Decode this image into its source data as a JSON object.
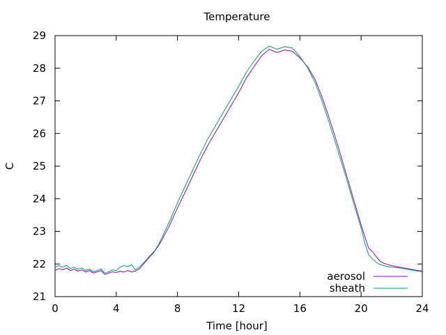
{
  "chart_data": {
    "type": "line",
    "title": "Temperature",
    "xlabel": "Time [hour]",
    "ylabel": "C",
    "xlim": [
      0,
      24
    ],
    "ylim": [
      21,
      29
    ],
    "xticks": [
      0,
      4,
      8,
      12,
      16,
      20,
      24
    ],
    "yticks": [
      21,
      22,
      23,
      24,
      25,
      26,
      27,
      28,
      29
    ],
    "grid": false,
    "legend_position": "bottom-right",
    "series": [
      {
        "name": "aerosol",
        "color": "#9400d3",
        "x": [
          0,
          0.25,
          0.5,
          0.75,
          1,
          1.25,
          1.5,
          1.75,
          2,
          2.25,
          2.5,
          2.75,
          3,
          3.25,
          3.5,
          3.75,
          4,
          4.25,
          4.5,
          4.75,
          5,
          5.25,
          5.5,
          5.75,
          6,
          6.25,
          6.5,
          6.75,
          7,
          7.5,
          8,
          8.5,
          9,
          9.5,
          10,
          10.5,
          11,
          11.5,
          12,
          12.5,
          13,
          13.5,
          14,
          14.5,
          15,
          15.5,
          16,
          16.5,
          17,
          17.5,
          18,
          18.5,
          19,
          19.5,
          20,
          20.25,
          20.5,
          20.75,
          21,
          21.25,
          21.5,
          21.75,
          22,
          22.5,
          23,
          23.5,
          24
        ],
        "y": [
          21.8,
          21.86,
          21.82,
          21.88,
          21.8,
          21.84,
          21.78,
          21.82,
          21.76,
          21.8,
          21.72,
          21.76,
          21.8,
          21.68,
          21.72,
          21.76,
          21.74,
          21.78,
          21.75,
          21.8,
          21.76,
          21.78,
          21.85,
          21.98,
          22.12,
          22.25,
          22.38,
          22.55,
          22.75,
          23.2,
          23.72,
          24.2,
          24.7,
          25.2,
          25.65,
          26.05,
          26.45,
          26.85,
          27.25,
          27.7,
          28.05,
          28.38,
          28.58,
          28.48,
          28.56,
          28.52,
          28.32,
          28.05,
          27.65,
          27.05,
          26.35,
          25.6,
          24.8,
          24.0,
          23.2,
          22.82,
          22.48,
          22.38,
          22.22,
          22.08,
          22.02,
          21.98,
          21.95,
          21.9,
          21.86,
          21.82,
          21.78
        ]
      },
      {
        "name": "sheath",
        "color": "#009e73",
        "x": [
          0,
          0.25,
          0.5,
          0.75,
          1,
          1.25,
          1.5,
          1.75,
          2,
          2.25,
          2.5,
          2.75,
          3,
          3.25,
          3.5,
          3.75,
          4,
          4.25,
          4.5,
          4.75,
          5,
          5.25,
          5.5,
          5.75,
          6,
          6.25,
          6.5,
          6.75,
          7,
          7.5,
          8,
          8.5,
          9,
          9.5,
          10,
          10.5,
          11,
          11.5,
          12,
          12.5,
          13,
          13.5,
          14,
          14.5,
          15,
          15.5,
          16,
          16.5,
          17,
          17.5,
          18,
          18.5,
          19,
          19.5,
          20,
          20.25,
          20.5,
          20.75,
          21,
          21.25,
          21.5,
          21.75,
          22,
          22.5,
          23,
          23.5,
          24
        ],
        "y": [
          21.9,
          21.95,
          21.9,
          21.96,
          21.86,
          21.9,
          21.84,
          21.88,
          21.8,
          21.84,
          21.76,
          21.8,
          21.85,
          21.72,
          21.76,
          21.82,
          21.8,
          21.9,
          21.95,
          21.92,
          21.98,
          21.82,
          21.9,
          22.02,
          22.15,
          22.28,
          22.4,
          22.58,
          22.82,
          23.32,
          23.88,
          24.38,
          24.88,
          25.38,
          25.85,
          26.25,
          26.65,
          27.05,
          27.45,
          27.88,
          28.22,
          28.52,
          28.68,
          28.58,
          28.66,
          28.62,
          28.36,
          28.02,
          27.55,
          26.92,
          26.2,
          25.45,
          24.68,
          23.88,
          23.1,
          22.62,
          22.28,
          22.15,
          22.05,
          21.98,
          21.95,
          21.92,
          21.9,
          21.88,
          21.84,
          21.8,
          21.76
        ]
      }
    ]
  }
}
